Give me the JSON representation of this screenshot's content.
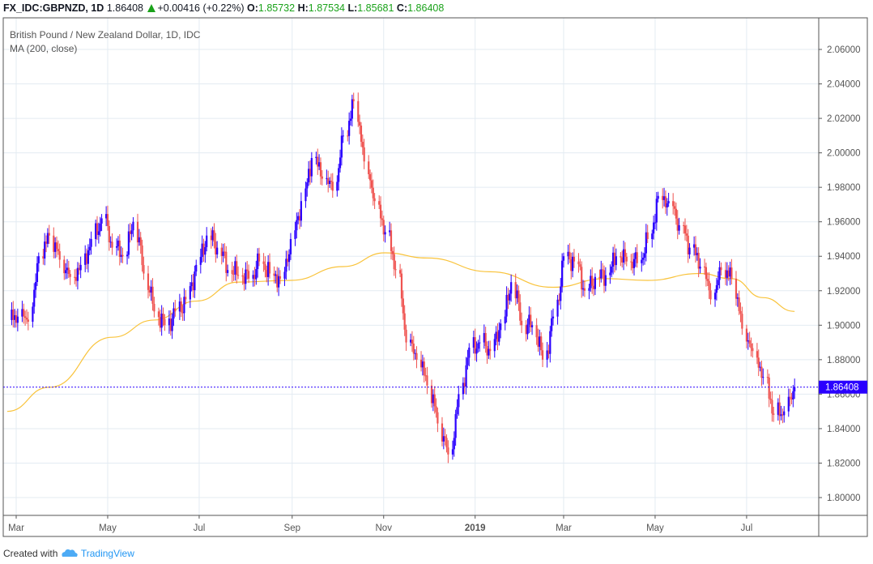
{
  "header": {
    "symbol": "FX_IDC:GBPNZD, 1D",
    "last": "1.86408",
    "change": "+0.00416 (+0.22%)",
    "o_label": "O:",
    "o": "1.85732",
    "h_label": "H:",
    "h": "1.87534",
    "l_label": "L:",
    "l": "1.85681",
    "c_label": "C:",
    "c": "1.86408",
    "direction_icon": "triangle-up-icon"
  },
  "legend": {
    "title": "British Pound / New Zealand Dollar, 1D, IDC",
    "indicator": "MA (200, close)"
  },
  "footer": {
    "created_with": "Created with",
    "brand": "TradingView"
  },
  "colors": {
    "up": "#2a00ff",
    "down": "#ef5350",
    "ma": "#f9c33b",
    "grid": "#e3ebf2",
    "last_price": "#2a00ff"
  },
  "chart_data": {
    "type": "candlestick",
    "interval": "1D",
    "ylim": [
      1.79,
      2.07
    ],
    "grid": true,
    "last_price": 1.86408,
    "y_ticks": [
      "2.06000",
      "2.04000",
      "2.02000",
      "2.00000",
      "1.98000",
      "1.96000",
      "1.94000",
      "1.92000",
      "1.90000",
      "1.88000",
      "1.86000",
      "1.84000",
      "1.82000",
      "1.80000"
    ],
    "x_ticks": [
      {
        "label": "Mar",
        "date": "2018-03-01"
      },
      {
        "label": "May",
        "date": "2018-05-01"
      },
      {
        "label": "Jul",
        "date": "2018-07-01"
      },
      {
        "label": "Sep",
        "date": "2018-09-01"
      },
      {
        "label": "Nov",
        "date": "2018-11-01"
      },
      {
        "label": "2019",
        "date": "2019-01-01"
      },
      {
        "label": "Mar",
        "date": "2019-03-01"
      },
      {
        "label": "May",
        "date": "2019-05-01"
      },
      {
        "label": "Jul",
        "date": "2019-07-01"
      }
    ],
    "weekly_closes": [
      [
        "2018-02-23",
        1.903
      ],
      [
        "2018-03-02",
        1.905
      ],
      [
        "2018-03-09",
        1.902
      ],
      [
        "2018-03-16",
        1.94
      ],
      [
        "2018-03-23",
        1.952
      ],
      [
        "2018-03-30",
        1.938
      ],
      [
        "2018-04-06",
        1.928
      ],
      [
        "2018-04-13",
        1.935
      ],
      [
        "2018-04-20",
        1.95
      ],
      [
        "2018-04-27",
        1.962
      ],
      [
        "2018-05-04",
        1.945
      ],
      [
        "2018-05-11",
        1.94
      ],
      [
        "2018-05-18",
        1.96
      ],
      [
        "2018-05-25",
        1.93
      ],
      [
        "2018-06-01",
        1.908
      ],
      [
        "2018-06-08",
        1.9
      ],
      [
        "2018-06-15",
        1.908
      ],
      [
        "2018-06-22",
        1.915
      ],
      [
        "2018-06-29",
        1.935
      ],
      [
        "2018-07-06",
        1.952
      ],
      [
        "2018-07-13",
        1.945
      ],
      [
        "2018-07-20",
        1.932
      ],
      [
        "2018-07-27",
        1.929
      ],
      [
        "2018-08-03",
        1.927
      ],
      [
        "2018-08-10",
        1.937
      ],
      [
        "2018-08-17",
        1.93
      ],
      [
        "2018-08-24",
        1.927
      ],
      [
        "2018-08-31",
        1.95
      ],
      [
        "2018-09-07",
        1.972
      ],
      [
        "2018-09-14",
        1.997
      ],
      [
        "2018-09-21",
        1.985
      ],
      [
        "2018-09-28",
        1.978
      ],
      [
        "2018-10-05",
        2.01
      ],
      [
        "2018-10-12",
        2.03
      ],
      [
        "2018-10-19",
        1.995
      ],
      [
        "2018-10-26",
        1.972
      ],
      [
        "2018-11-02",
        1.954
      ],
      [
        "2018-11-09",
        1.932
      ],
      [
        "2018-11-16",
        1.89
      ],
      [
        "2018-11-23",
        1.88
      ],
      [
        "2018-11-30",
        1.865
      ],
      [
        "2018-12-07",
        1.843
      ],
      [
        "2018-12-14",
        1.825
      ],
      [
        "2018-12-21",
        1.86
      ],
      [
        "2018-12-28",
        1.887
      ],
      [
        "2019-01-04",
        1.89
      ],
      [
        "2019-01-11",
        1.885
      ],
      [
        "2019-01-18",
        1.901
      ],
      [
        "2019-01-25",
        1.925
      ],
      [
        "2019-02-01",
        1.9
      ],
      [
        "2019-02-08",
        1.9
      ],
      [
        "2019-02-15",
        1.88
      ],
      [
        "2019-02-22",
        1.905
      ],
      [
        "2019-03-01",
        1.94
      ],
      [
        "2019-03-08",
        1.937
      ],
      [
        "2019-03-15",
        1.92
      ],
      [
        "2019-03-22",
        1.928
      ],
      [
        "2019-03-29",
        1.929
      ],
      [
        "2019-04-05",
        1.94
      ],
      [
        "2019-04-12",
        1.937
      ],
      [
        "2019-04-19",
        1.936
      ],
      [
        "2019-04-26",
        1.95
      ],
      [
        "2019-05-03",
        1.975
      ],
      [
        "2019-05-10",
        1.972
      ],
      [
        "2019-05-17",
        1.958
      ],
      [
        "2019-05-24",
        1.945
      ],
      [
        "2019-05-31",
        1.934
      ],
      [
        "2019-06-07",
        1.915
      ],
      [
        "2019-06-14",
        1.932
      ],
      [
        "2019-06-21",
        1.927
      ],
      [
        "2019-06-28",
        1.898
      ],
      [
        "2019-07-05",
        1.885
      ],
      [
        "2019-07-12",
        1.87
      ],
      [
        "2019-07-19",
        1.848
      ],
      [
        "2019-07-26",
        1.85
      ],
      [
        "2019-08-02",
        1.86408
      ]
    ],
    "series": [
      {
        "name": "MA (200, close)",
        "points": [
          [
            "2018-02-23",
            1.85
          ],
          [
            "2018-03-23",
            1.864
          ],
          [
            "2018-05-04",
            1.893
          ],
          [
            "2018-06-01",
            1.903
          ],
          [
            "2018-06-29",
            1.914
          ],
          [
            "2018-07-27",
            1.925
          ],
          [
            "2018-08-31",
            1.926
          ],
          [
            "2018-10-05",
            1.934
          ],
          [
            "2018-11-02",
            1.942
          ],
          [
            "2018-11-30",
            1.939
          ],
          [
            "2019-01-11",
            1.931
          ],
          [
            "2019-02-22",
            1.922
          ],
          [
            "2019-03-29",
            1.927
          ],
          [
            "2019-04-26",
            1.926
          ],
          [
            "2019-05-31",
            1.93
          ],
          [
            "2019-06-21",
            1.927
          ],
          [
            "2019-07-12",
            1.916
          ],
          [
            "2019-08-02",
            1.908
          ]
        ]
      }
    ]
  }
}
